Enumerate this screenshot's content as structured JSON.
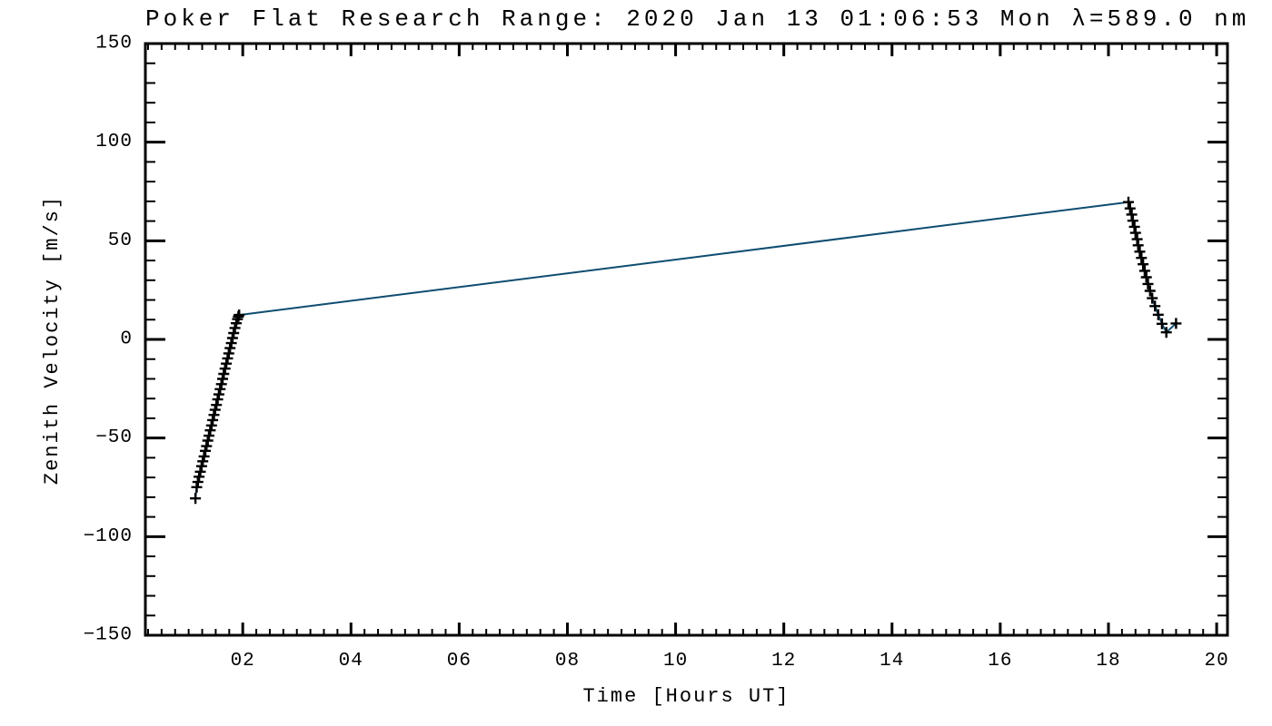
{
  "page": {
    "background": "#ffffff"
  },
  "chart_data": {
    "type": "line",
    "title": "Poker Flat Research Range: 2020 Jan 13 01:06:53 Mon λ=589.0 nm",
    "xlabel": "Time [Hours UT]",
    "ylabel": "Zenith Velocity [m/s]",
    "xlim": [
      0.2,
      20.2
    ],
    "ylim": [
      -150,
      150
    ],
    "grid": false,
    "legend": null,
    "frame_color": "#000000",
    "x_axis": {
      "major_tick_values": [
        2,
        4,
        6,
        8,
        10,
        12,
        14,
        16,
        18,
        20
      ],
      "major_tick_labels": [
        "02",
        "04",
        "06",
        "08",
        "10",
        "12",
        "14",
        "16",
        "18",
        "20"
      ],
      "minor_tick_step": 0.25
    },
    "y_axis": {
      "major_tick_values": [
        -150,
        -100,
        -50,
        0,
        50,
        100,
        150
      ],
      "major_tick_labels": [
        "−150",
        "−100",
        "−50",
        "0",
        "50",
        "100",
        "150"
      ],
      "minor_tick_step": 10
    },
    "series": [
      {
        "name": "zenith-velocity",
        "marker": "plus",
        "marker_color": "#000000",
        "line_color": "#0e4d70",
        "points": [
          [
            1.125,
            -80.6
          ],
          [
            1.148,
            -74.9
          ],
          [
            1.17,
            -72.3
          ],
          [
            1.193,
            -69.6
          ],
          [
            1.216,
            -67.1
          ],
          [
            1.239,
            -64.3
          ],
          [
            1.262,
            -61.8
          ],
          [
            1.285,
            -59.3
          ],
          [
            1.308,
            -56.5
          ],
          [
            1.33,
            -54.1
          ],
          [
            1.353,
            -51.3
          ],
          [
            1.376,
            -48.8
          ],
          [
            1.399,
            -46.1
          ],
          [
            1.422,
            -43.6
          ],
          [
            1.445,
            -40.9
          ],
          [
            1.468,
            -38.3
          ],
          [
            1.49,
            -35.7
          ],
          [
            1.513,
            -33.2
          ],
          [
            1.536,
            -30.4
          ],
          [
            1.559,
            -27.9
          ],
          [
            1.582,
            -25.2
          ],
          [
            1.605,
            -22.7
          ],
          [
            1.628,
            -20.0
          ],
          [
            1.65,
            -17.5
          ],
          [
            1.673,
            -14.8
          ],
          [
            1.696,
            -12.3
          ],
          [
            1.719,
            -9.6
          ],
          [
            1.742,
            -7.1
          ],
          [
            1.765,
            -4.4
          ],
          [
            1.788,
            -1.9
          ],
          [
            1.81,
            0.7
          ],
          [
            1.833,
            3.2
          ],
          [
            1.856,
            5.8
          ],
          [
            1.879,
            8.2
          ],
          [
            1.902,
            10.3
          ],
          [
            1.92,
            11.6
          ],
          [
            1.933,
            12.4
          ],
          [
            18.37,
            69.6
          ],
          [
            18.4,
            66.4
          ],
          [
            18.43,
            63.3
          ],
          [
            18.45,
            60.2
          ],
          [
            18.48,
            57.1
          ],
          [
            18.5,
            54.0
          ],
          [
            18.53,
            50.8
          ],
          [
            18.55,
            47.7
          ],
          [
            18.58,
            44.5
          ],
          [
            18.61,
            41.3
          ],
          [
            18.64,
            38.1
          ],
          [
            18.67,
            34.8
          ],
          [
            18.7,
            31.5
          ],
          [
            18.73,
            28.1
          ],
          [
            18.77,
            24.6
          ],
          [
            18.81,
            20.9
          ],
          [
            18.86,
            16.9
          ],
          [
            18.92,
            12.5
          ],
          [
            18.99,
            7.9
          ],
          [
            19.07,
            3.6
          ],
          [
            19.25,
            8.1
          ]
        ]
      }
    ]
  }
}
